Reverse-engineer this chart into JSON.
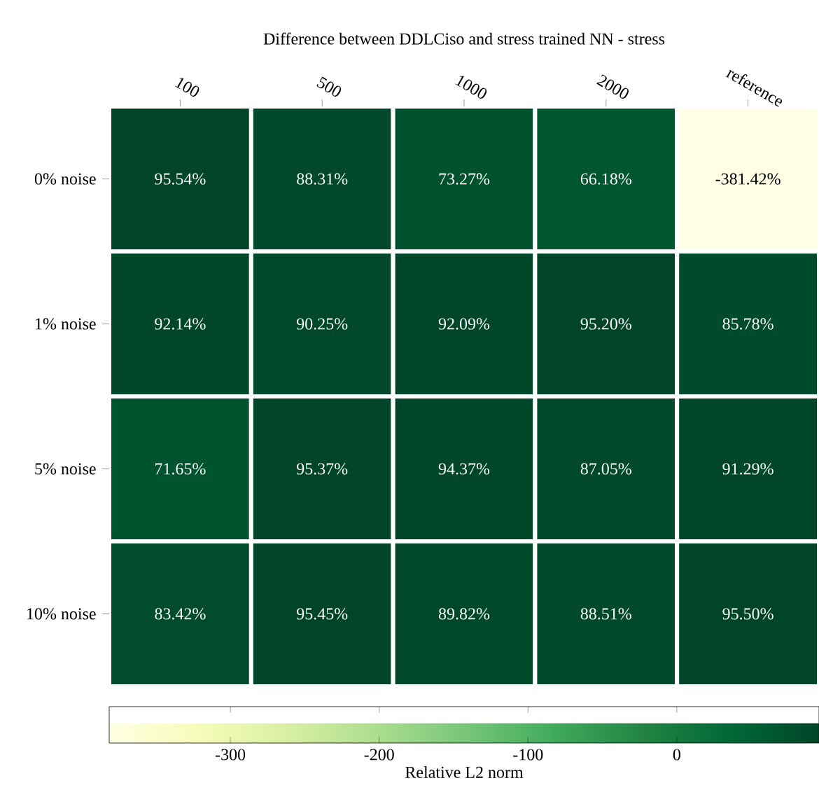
{
  "chart_data": {
    "type": "heatmap",
    "title": "Difference between DDLCiso and stress trained NN - stress",
    "categories": [
      "100",
      "500",
      "1000",
      "2000",
      "reference"
    ],
    "y_categories": [
      "0% noise",
      "1% noise",
      "5% noise",
      "10% noise"
    ],
    "cells": [
      [
        95.54,
        88.31,
        73.27,
        66.18,
        -381.42
      ],
      [
        92.14,
        90.25,
        92.09,
        95.2,
        85.78
      ],
      [
        71.65,
        95.37,
        94.37,
        87.05,
        91.29
      ],
      [
        83.42,
        95.45,
        89.82,
        88.51,
        95.5
      ]
    ],
    "cell_labels": [
      [
        "95.54%",
        "88.31%",
        "73.27%",
        "66.18%",
        "-381.42%"
      ],
      [
        "92.14%",
        "90.25%",
        "92.09%",
        "95.20%",
        "85.78%"
      ],
      [
        "71.65%",
        "95.37%",
        "94.37%",
        "87.05%",
        "91.29%"
      ],
      [
        "83.42%",
        "95.45%",
        "89.82%",
        "88.51%",
        "95.50%"
      ]
    ],
    "clim": [
      -381.42,
      95.54
    ],
    "cticks": [
      -300,
      -200,
      -100,
      0
    ],
    "clabel": "Relative L2 norm"
  }
}
